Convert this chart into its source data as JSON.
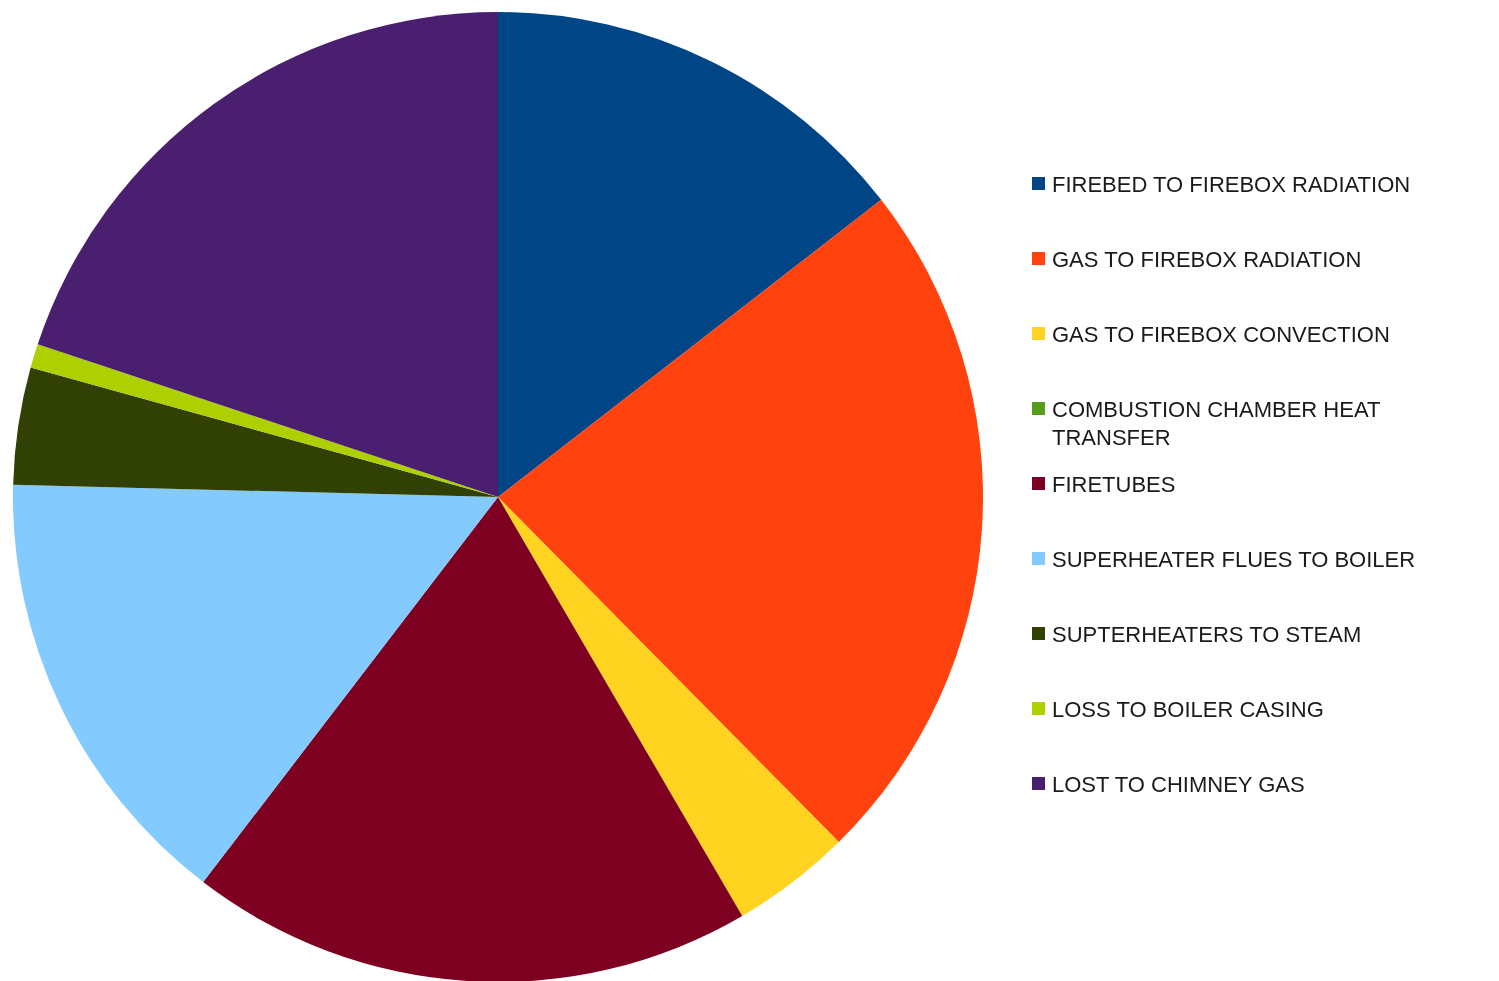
{
  "chart_data": {
    "type": "pie",
    "categories": [
      "FIREBED TO FIREBOX RADIATION",
      "GAS TO FIREBOX RADIATION",
      "GAS TO FIREBOX CONVECTION",
      "COMBUSTION CHAMBER HEAT TRANSFER",
      "FIRETUBES",
      "SUPERHEATER FLUES TO BOILER",
      "SUPTERHEATERS TO STEAM",
      "LOSS TO BOILER CASING",
      "LOST TO CHIMNEY GAS"
    ],
    "values": [
      14.5,
      23.1,
      4.0,
      0,
      18.8,
      15.0,
      3.9,
      0.8,
      19.9
    ],
    "colors": [
      "#004586",
      "#ff420e",
      "#ffd320",
      "#579d1c",
      "#7e0021",
      "#83caff",
      "#314004",
      "#aecf00",
      "#4b1f6f"
    ],
    "legend": "right"
  }
}
